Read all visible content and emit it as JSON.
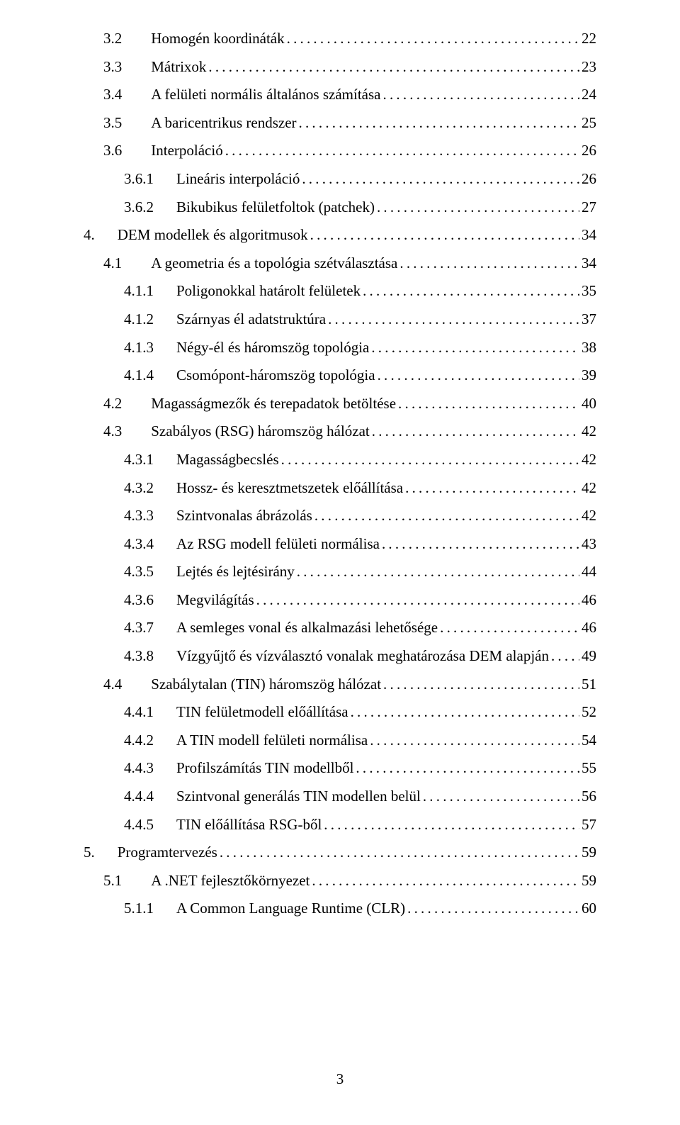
{
  "gap_l2": 41,
  "gap_l3": 32,
  "gap_l1": 32,
  "page_number": "3",
  "entries": [
    {
      "level": 2,
      "num": "3.2",
      "title": "Homogén koordináták",
      "page": "22"
    },
    {
      "level": 2,
      "num": "3.3",
      "title": "Mátrixok",
      "page": "23"
    },
    {
      "level": 2,
      "num": "3.4",
      "title": "A felületi normális általános számítása",
      "page": "24"
    },
    {
      "level": 2,
      "num": "3.5",
      "title": "A baricentrikus rendszer",
      "page": "25"
    },
    {
      "level": 2,
      "num": "3.6",
      "title": "Interpoláció",
      "page": "26"
    },
    {
      "level": 3,
      "num": "3.6.1",
      "title": "Lineáris interpoláció",
      "page": "26"
    },
    {
      "level": 3,
      "num": "3.6.2",
      "title": "Bikubikus felületfoltok (patchek)",
      "page": "27"
    },
    {
      "level": 1,
      "num": "4.",
      "title": "DEM modellek és algoritmusok",
      "page": "34"
    },
    {
      "level": 2,
      "num": "4.1",
      "title": "A geometria és a topológia szétválasztása",
      "page": "34"
    },
    {
      "level": 3,
      "num": "4.1.1",
      "title": "Poligonokkal határolt felületek",
      "page": "35"
    },
    {
      "level": 3,
      "num": "4.1.2",
      "title": "Szárnyas él adatstruktúra",
      "page": "37"
    },
    {
      "level": 3,
      "num": "4.1.3",
      "title": "Négy-él és háromszög topológia",
      "page": "38"
    },
    {
      "level": 3,
      "num": "4.1.4",
      "title": "Csomópont-háromszög topológia",
      "page": "39"
    },
    {
      "level": 2,
      "num": "4.2",
      "title": "Magasságmezők és terepadatok betöltése",
      "page": "40"
    },
    {
      "level": 2,
      "num": "4.3",
      "title": "Szabályos (RSG) háromszög hálózat",
      "page": "42"
    },
    {
      "level": 3,
      "num": "4.3.1",
      "title": "Magasságbecslés",
      "page": "42"
    },
    {
      "level": 3,
      "num": "4.3.2",
      "title": "Hossz- és keresztmetszetek előállítása",
      "page": "42"
    },
    {
      "level": 3,
      "num": "4.3.3",
      "title": "Szintvonalas ábrázolás",
      "page": "42"
    },
    {
      "level": 3,
      "num": "4.3.4",
      "title": "Az RSG modell felületi normálisa",
      "page": "43"
    },
    {
      "level": 3,
      "num": "4.3.5",
      "title": "Lejtés és lejtésirány",
      "page": "44"
    },
    {
      "level": 3,
      "num": "4.3.6",
      "title": "Megvilágítás",
      "page": "46"
    },
    {
      "level": 3,
      "num": "4.3.7",
      "title": "A semleges vonal és alkalmazási lehetősége",
      "page": "46"
    },
    {
      "level": 3,
      "num": "4.3.8",
      "title": "Vízgyűjtő és vízválasztó vonalak meghatározása DEM alapján",
      "page": "49"
    },
    {
      "level": 2,
      "num": "4.4",
      "title": "Szabálytalan (TIN) háromszög hálózat",
      "page": "51"
    },
    {
      "level": 3,
      "num": "4.4.1",
      "title": "TIN felületmodell előállítása",
      "page": "52"
    },
    {
      "level": 3,
      "num": "4.4.2",
      "title": "A TIN modell felületi normálisa",
      "page": "54"
    },
    {
      "level": 3,
      "num": "4.4.3",
      "title": "Profilszámítás TIN modellből",
      "page": "55"
    },
    {
      "level": 3,
      "num": "4.4.4",
      "title": "Szintvonal generálás TIN modellen belül",
      "page": "56"
    },
    {
      "level": 3,
      "num": "4.4.5",
      "title": "TIN előállítása RSG-ből",
      "page": "57"
    },
    {
      "level": 1,
      "num": "5.",
      "title": "Programtervezés",
      "page": "59"
    },
    {
      "level": 2,
      "num": "5.1",
      "title": "A .NET fejlesztőkörnyezet",
      "page": "59"
    },
    {
      "level": 3,
      "num": "5.1.1",
      "title": "A Common Language Runtime (CLR)",
      "page": "60"
    }
  ]
}
